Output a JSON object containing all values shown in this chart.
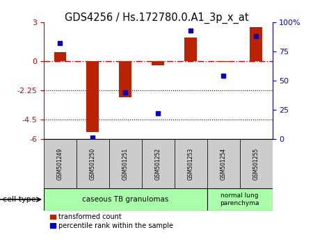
{
  "title": "GDS4256 / Hs.172780.0.A1_3p_x_at",
  "samples": [
    "GSM501249",
    "GSM501250",
    "GSM501251",
    "GSM501252",
    "GSM501253",
    "GSM501254",
    "GSM501255"
  ],
  "transformed_count": [
    0.7,
    -5.5,
    -2.8,
    -0.35,
    1.8,
    -0.05,
    2.6
  ],
  "percentile_rank": [
    82,
    1,
    40,
    22,
    93,
    54,
    88
  ],
  "ylim_left": [
    -6,
    3
  ],
  "ylim_right": [
    0,
    100
  ],
  "yticks_left": [
    -6,
    -4.5,
    -2.25,
    0,
    3
  ],
  "yticks_right": [
    0,
    25,
    50,
    75,
    100
  ],
  "ytick_labels_left": [
    "-6",
    "-4.5",
    "-2.25",
    "0",
    "3"
  ],
  "ytick_labels_right": [
    "0",
    "25",
    "50",
    "75",
    "100%"
  ],
  "hlines": [
    -4.5,
    -2.25
  ],
  "hline_zero": 0,
  "bar_color": "#bb2200",
  "dot_color": "#0000cc",
  "group1_label": "caseous TB granulomas",
  "group1_indices": [
    0,
    1,
    2,
    3,
    4
  ],
  "group2_label": "normal lung\nparenchyma",
  "group2_indices": [
    5,
    6
  ],
  "cell_color": "#aaffaa",
  "sample_box_color": "#cccccc",
  "legend_red": "transformed count",
  "legend_blue": "percentile rank within the sample",
  "cell_type_label": "cell type",
  "background_color": "#ffffff"
}
